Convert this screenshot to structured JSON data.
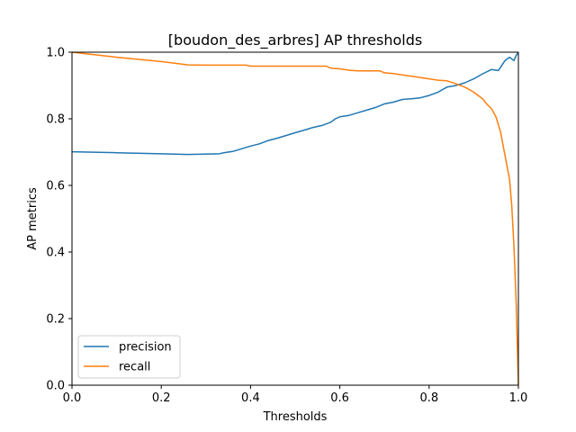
{
  "chart_data": {
    "type": "line",
    "title": "[boudon_des_arbres] AP thresholds",
    "xlabel": "Thresholds",
    "ylabel": "AP metrics",
    "xlim": [
      0,
      1
    ],
    "ylim": [
      0,
      1
    ],
    "xticks": [
      "0.0",
      "0.2",
      "0.4",
      "0.6",
      "0.8",
      "1.0"
    ],
    "yticks": [
      "0.0",
      "0.2",
      "0.4",
      "0.6",
      "0.8",
      "1.0"
    ],
    "grid": false,
    "legend_position": "lower-left",
    "series": [
      {
        "name": "precision",
        "color": "#1f77b4",
        "points": [
          [
            0.0,
            0.701
          ],
          [
            0.1,
            0.698
          ],
          [
            0.2,
            0.695
          ],
          [
            0.26,
            0.693
          ],
          [
            0.33,
            0.695
          ],
          [
            0.34,
            0.698
          ],
          [
            0.36,
            0.702
          ],
          [
            0.38,
            0.71
          ],
          [
            0.4,
            0.718
          ],
          [
            0.42,
            0.725
          ],
          [
            0.44,
            0.735
          ],
          [
            0.46,
            0.742
          ],
          [
            0.48,
            0.75
          ],
          [
            0.5,
            0.758
          ],
          [
            0.52,
            0.766
          ],
          [
            0.54,
            0.774
          ],
          [
            0.56,
            0.78
          ],
          [
            0.58,
            0.79
          ],
          [
            0.59,
            0.8
          ],
          [
            0.6,
            0.806
          ],
          [
            0.62,
            0.81
          ],
          [
            0.64,
            0.818
          ],
          [
            0.66,
            0.826
          ],
          [
            0.68,
            0.834
          ],
          [
            0.7,
            0.845
          ],
          [
            0.72,
            0.85
          ],
          [
            0.74,
            0.858
          ],
          [
            0.76,
            0.86
          ],
          [
            0.78,
            0.863
          ],
          [
            0.8,
            0.87
          ],
          [
            0.82,
            0.88
          ],
          [
            0.84,
            0.895
          ],
          [
            0.86,
            0.9
          ],
          [
            0.88,
            0.908
          ],
          [
            0.9,
            0.92
          ],
          [
            0.92,
            0.935
          ],
          [
            0.94,
            0.948
          ],
          [
            0.955,
            0.945
          ],
          [
            0.96,
            0.955
          ],
          [
            0.97,
            0.975
          ],
          [
            0.98,
            0.985
          ],
          [
            0.99,
            0.975
          ],
          [
            0.995,
            0.99
          ],
          [
            1.0,
            1.0
          ]
        ]
      },
      {
        "name": "recall",
        "color": "#ff7f0e",
        "points": [
          [
            0.0,
            1.0
          ],
          [
            0.1,
            0.985
          ],
          [
            0.2,
            0.972
          ],
          [
            0.26,
            0.962
          ],
          [
            0.3,
            0.961
          ],
          [
            0.39,
            0.961
          ],
          [
            0.4,
            0.958
          ],
          [
            0.5,
            0.958
          ],
          [
            0.57,
            0.958
          ],
          [
            0.58,
            0.952
          ],
          [
            0.6,
            0.95
          ],
          [
            0.62,
            0.946
          ],
          [
            0.64,
            0.944
          ],
          [
            0.66,
            0.944
          ],
          [
            0.69,
            0.944
          ],
          [
            0.7,
            0.938
          ],
          [
            0.72,
            0.936
          ],
          [
            0.74,
            0.932
          ],
          [
            0.76,
            0.928
          ],
          [
            0.78,
            0.924
          ],
          [
            0.8,
            0.92
          ],
          [
            0.82,
            0.916
          ],
          [
            0.84,
            0.914
          ],
          [
            0.86,
            0.905
          ],
          [
            0.88,
            0.895
          ],
          [
            0.9,
            0.88
          ],
          [
            0.91,
            0.87
          ],
          [
            0.92,
            0.86
          ],
          [
            0.93,
            0.843
          ],
          [
            0.94,
            0.83
          ],
          [
            0.95,
            0.805
          ],
          [
            0.96,
            0.76
          ],
          [
            0.97,
            0.69
          ],
          [
            0.98,
            0.62
          ],
          [
            0.985,
            0.54
          ],
          [
            0.99,
            0.42
          ],
          [
            0.995,
            0.25
          ],
          [
            0.998,
            0.1
          ],
          [
            1.0,
            0.0
          ]
        ]
      }
    ]
  }
}
